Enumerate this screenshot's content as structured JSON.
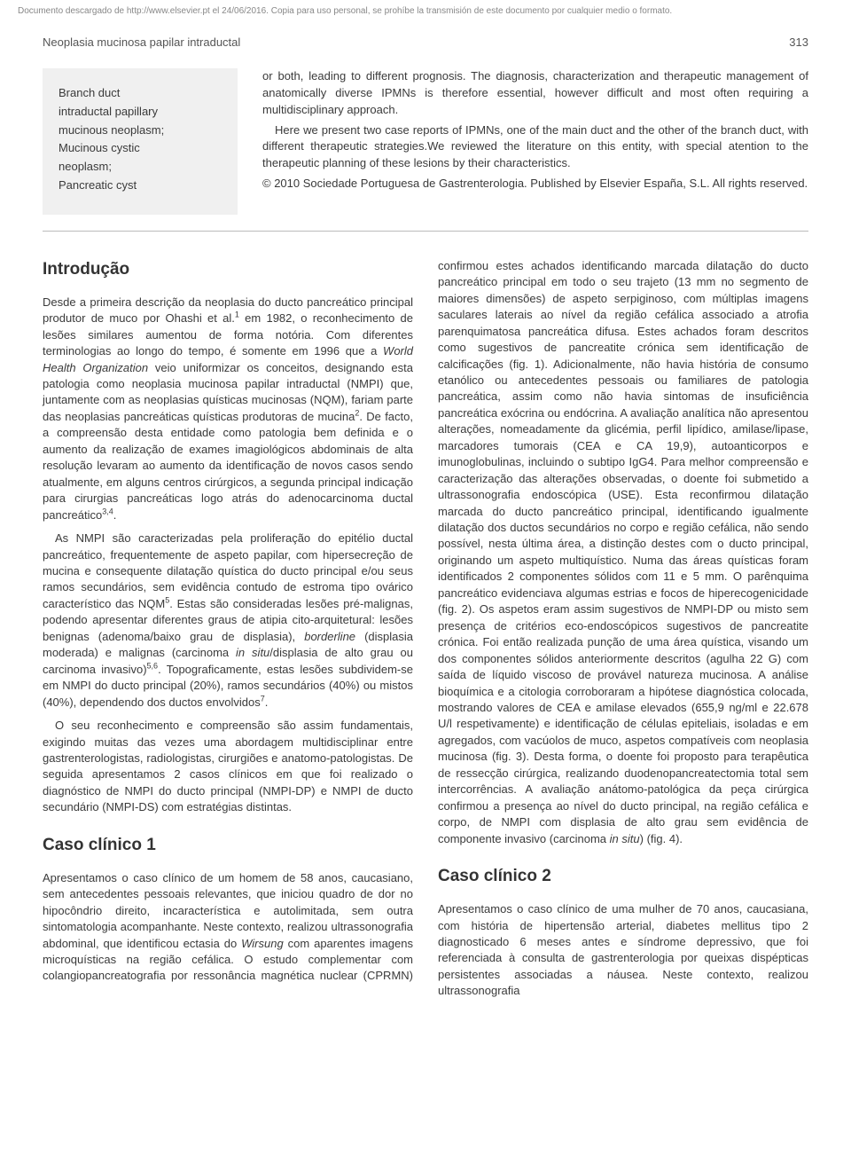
{
  "watermark": "Documento descargado de http://www.elsevier.pt el 24/06/2016. Copia para uso personal, se prohíbe la transmisión de este documento por cualquier medio o formato.",
  "runningTitle": "Neoplasia mucinosa papilar intraductal",
  "pageNumber": "313",
  "keywords": {
    "lines": [
      "Branch duct",
      "intraductal papillary",
      "mucinous neoplasm;",
      "Mucinous cystic",
      "neoplasm;",
      "Pancreatic cyst"
    ]
  },
  "abstract": {
    "p1": "or both, leading to different prognosis. The diagnosis, characterization and therapeutic management of anatomically diverse IPMNs is therefore essential, however difficult and most often requiring a multidisciplinary approach.",
    "p2": "Here we present two case reports of IPMNs, one of the main duct and the other of the branch duct, with different therapeutic strategies.We reviewed the literature on this entity, with special atention to the therapeutic planning of these lesions by their characteristics.",
    "copyright": "© 2010 Sociedade Portuguesa de Gastrenterologia. Published by Elsevier España, S.L. All rights reserved."
  },
  "sections": {
    "intro": {
      "title": "Introdução",
      "p1a": "Desde a primeira descrição da neoplasia do ducto pancreático principal produtor de muco por Ohashi et al.",
      "p1b": " em 1982, o reconhecimento de lesões similares aumentou de forma notória. Com diferentes terminologias ao longo do tempo, é somente em 1996 que a ",
      "p1c": "World Health Organization",
      "p1d": " veio uniformizar os conceitos, designando esta patologia como neoplasia mucinosa papilar intraductal (NMPI) que, juntamente com as neoplasias quísticas mucinosas (NQM), fariam parte das neoplasias pancreáticas quísticas produtoras de mucina",
      "p1e": ". De facto, a compreensão desta entidade como patologia bem definida e o aumento da realização de exames imagiológicos abdominais de alta resolução levaram ao aumento da identificação de novos casos sendo atualmente, em alguns centros cirúrgicos, a segunda principal indicação para cirurgias pancreáticas logo atrás do adenocarcinoma ductal pancreático",
      "p1f": ".",
      "p2a": "As NMPI são caracterizadas pela proliferação do epitélio ductal pancreático, frequentemente de aspeto papilar, com hipersecreção de mucina e consequente dilatação quística do ducto principal e/ou seus ramos secundários, sem evidência contudo de estroma tipo ovárico característico das NQM",
      "p2b": ". Estas são consideradas lesões pré-malignas, podendo apresentar diferentes graus de atipia cito-arquitetural: lesões benignas (adenoma/baixo grau de displasia), ",
      "p2c": "borderline",
      "p2d": " (displasia moderada) e malignas (carcinoma ",
      "p2e": "in situ",
      "p2f": "/displasia de alto grau ou carcinoma invasivo)",
      "p2g": ". Topograficamente, estas lesões subdividem-se em NMPI do ducto principal (20%), ramos secundários (40%) ou mistos (40%), dependendo dos ductos envolvidos",
      "p2h": ".",
      "p3": "O seu reconhecimento e compreensão são assim fundamentais, exigindo muitas das vezes uma abordagem multidisciplinar entre gastrenterologistas, radiologistas, cirurgiões e anatomo-patologistas. De seguida apresentamos 2 casos clínicos em que foi realizado o diagnóstico de NMPI do ducto principal (NMPI-DP) e NMPI de ducto secundário (NMPI-DS) com estratégias distintas."
    },
    "case1": {
      "title": "Caso clínico 1",
      "p1a": "Apresentamos o caso clínico de um homem de 58 anos, caucasiano, sem antecedentes pessoais relevantes, que iniciou quadro de dor no hipocôndrio direito, incaracterística e autolimitada, sem outra sintomatologia acompanhante. Neste contexto, realizou ultrassonografia abdominal, que identificou ectasia do ",
      "p1b": "Wirsung",
      "p1c": " com aparentes imagens microquísticas na região cefálica. O estudo complementar com colangiopancreatografia por ressonância magnética nuclear (CPRMN) confirmou estes achados identificando ",
      "p1d": "marcada dilatação do ducto pancreático principal em todo o seu trajeto (13 mm no segmento de maiores dimensões) de aspeto serpiginoso, com múltiplas imagens saculares laterais ao nível da região cefálica associado a atrofia parenquimatosa pancreática difusa. Estes achados foram descritos como sugestivos de pancreatite crónica sem identificação de calcificações (fig. 1). Adicionalmente, não havia história de consumo etanólico ou antecedentes pessoais ou familiares de patologia pancreática, assim como não havia sintomas de insuficiência pancreática exócrina ou endócrina. A avaliação analítica não apresentou alterações, nomeadamente da glicémia, perfil lipídico, amilase/lipase, marcadores tumorais (CEA e CA 19,9), autoanticorpos e imunoglobulinas, incluindo o subtipo IgG4. Para melhor compreensão e caracterização das alterações observadas, o doente foi submetido a ultrassonografia endoscópica (USE). Esta reconfirmou dilatação marcada do ducto pancreático principal, identificando igualmente dilatação dos ductos secundários no corpo e região cefálica, não sendo possível, nesta última área, a distinção destes com o ducto principal, originando um aspeto multiquístico. Numa das áreas quísticas foram identificados 2 componentes sólidos com 11 e 5 mm. O parênquima pancreático evidenciava algumas estrias e focos de hiperecogenicidade (fig. 2). Os aspetos eram assim sugestivos de NMPI-DP ou misto sem presença de critérios eco-endoscópicos sugestivos de pancreatite crónica. Foi então realizada punção de uma área quística, visando um dos componentes sólidos anteriormente descritos (agulha 22 G) com saída de líquido viscoso de provável natureza mucinosa. A análise bioquímica e a citologia corroboraram a hipótese diagnóstica colocada, mostrando valores de CEA e amilase elevados (655,9 ng/ml e 22.678 U/l respetivamente) e identificação de células epiteliais, isoladas e em agregados, com vacúolos de muco, aspetos compatíveis com neoplasia mucinosa (fig. 3). Desta forma, o doente foi proposto para terapêutica de ressecção cirúrgica, realizando duodenopancreatectomia total sem intercorrências. A avaliação anátomo-patológica da peça cirúrgica confirmou a presença ao nível do ducto principal, na região cefálica e corpo, de NMPI com displasia de alto grau sem evidência de componente invasivo (carcinoma ",
      "p1e": "in situ",
      "p1f": ") (fig. 4)."
    },
    "case2": {
      "title": "Caso clínico 2",
      "p1": "Apresentamos o caso clínico de uma mulher de 70 anos, caucasiana, com história de hipertensão arterial, diabetes mellitus tipo 2 diagnosticado 6 meses antes e síndrome depressivo, que foi referenciada à consulta de gastrenterologia por queixas dispépticas persistentes associadas a náusea. Neste contexto, realizou ultrassonografia"
    }
  },
  "supRefs": {
    "r1": "1",
    "r2": "2",
    "r34": "3,4",
    "r5": "5",
    "r56": "5,6",
    "r7": "7"
  }
}
